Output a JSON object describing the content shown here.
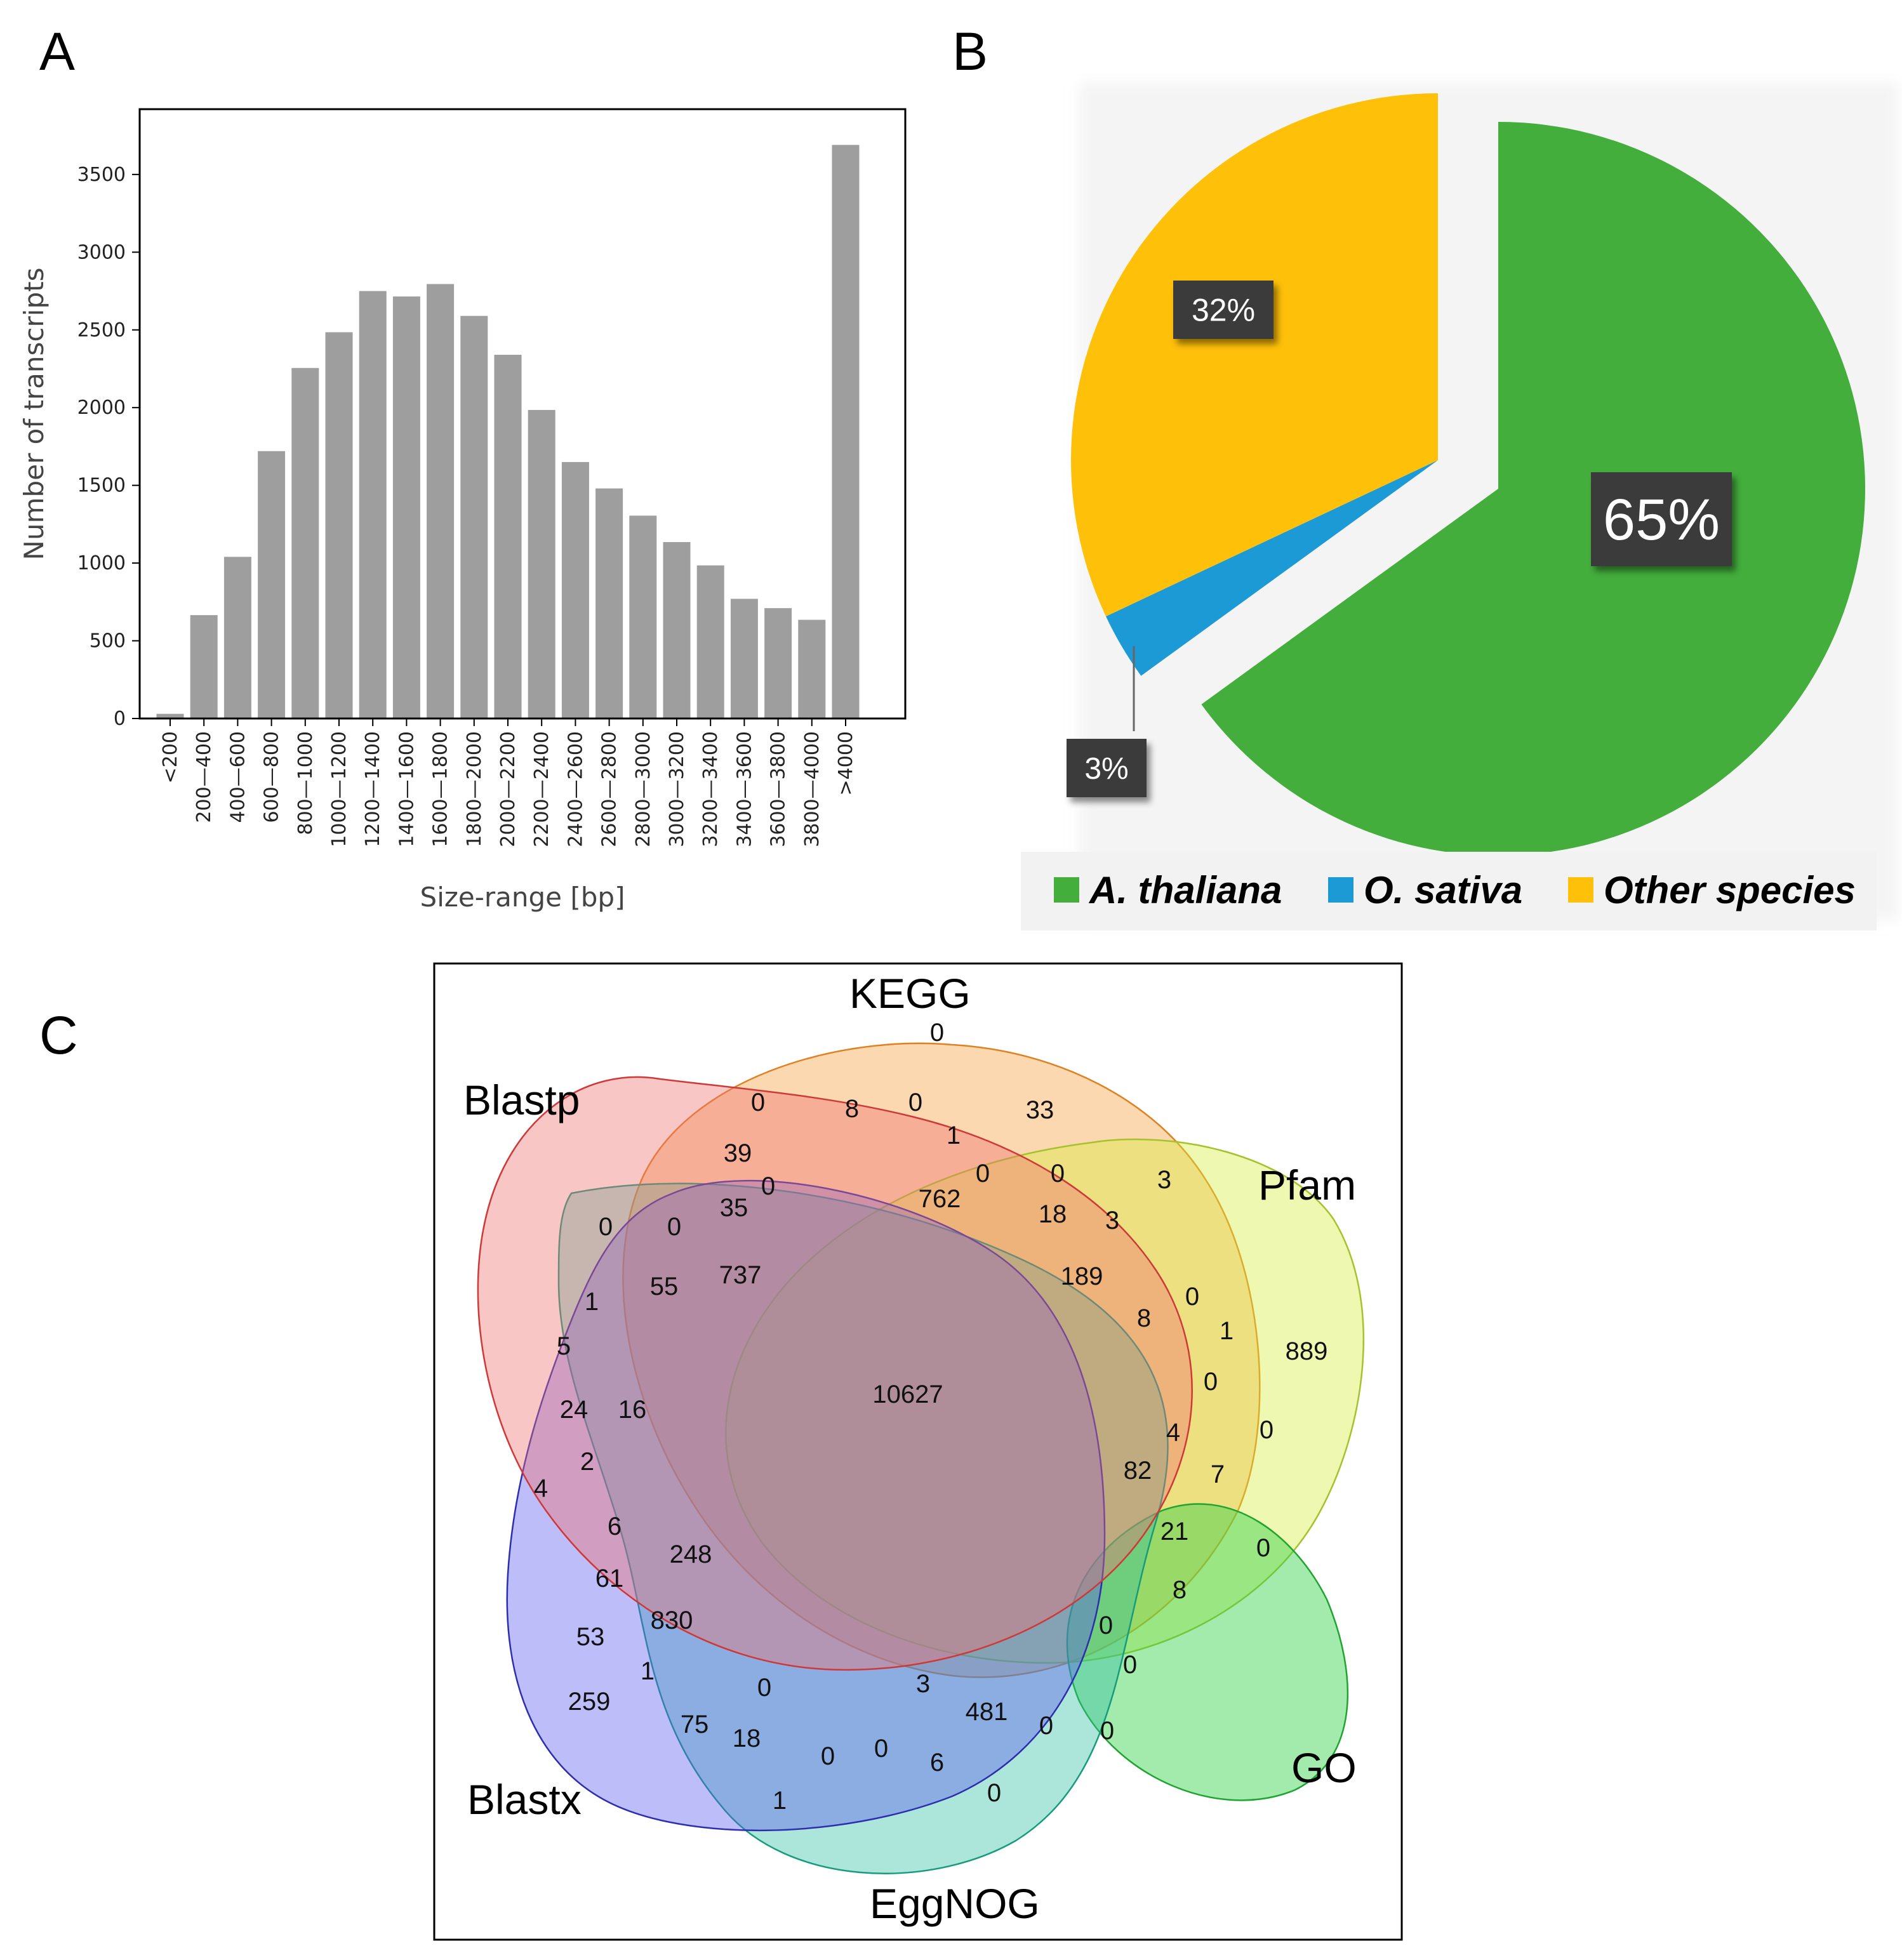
{
  "panels": {
    "a": {
      "letter": "A"
    },
    "b": {
      "letter": "B"
    },
    "c": {
      "letter": "C"
    }
  },
  "chart_data": [
    {
      "id": "A",
      "type": "bar",
      "categories": [
        "<200",
        "200—400",
        "400—600",
        "600—800",
        "800—1000",
        "1000—1200",
        "1200—1400",
        "1400—1600",
        "1600—1800",
        "1800—2000",
        "2000—2200",
        "2200—2400",
        "2400—2600",
        "2600—2800",
        "2800—3000",
        "3000—3200",
        "3200—3400",
        "3400—3600",
        "3600—3800",
        "3800—4000",
        ">4000"
      ],
      "values": [
        30,
        665,
        1040,
        1720,
        2255,
        2485,
        2750,
        2715,
        2795,
        2590,
        2340,
        1985,
        1650,
        1480,
        1305,
        1135,
        985,
        770,
        710,
        635,
        3690
      ],
      "title": "",
      "xlabel": "Size-range [bp]",
      "ylabel": "Number of transcripts",
      "yticks": [
        0,
        500,
        1000,
        1500,
        2000,
        2500,
        3000,
        3500
      ],
      "ylim": [
        0,
        3920
      ],
      "bar_color": "#9e9e9e"
    },
    {
      "id": "B",
      "type": "pie",
      "labels": [
        "A. thaliana",
        "O. sativa",
        "Other species"
      ],
      "values": [
        65,
        3,
        32
      ],
      "value_labels": [
        "65%",
        "3%",
        "32%"
      ],
      "colors": [
        "#43ae3c",
        "#1b9ad6",
        "#fec009"
      ],
      "legend_position": "bottom"
    },
    {
      "id": "C",
      "type": "venn",
      "sets": [
        "KEGG",
        "Pfam",
        "GO",
        "EggNOG",
        "Blastx",
        "Blastp"
      ],
      "set_colors": [
        "#f7a342",
        "#d4ee3b",
        "#34d04a",
        "#2fbf9f",
        "#5b5bf0",
        "#f07070"
      ],
      "regions": [
        "0",
        "0",
        "8",
        "0",
        "33",
        "0",
        "1",
        "39",
        "0",
        "0",
        "3",
        "762",
        "18",
        "3",
        "0",
        "0",
        "35",
        "55",
        "737",
        "189",
        "8",
        "0",
        "1",
        "889",
        "1",
        "5",
        "10627",
        "0",
        "24",
        "16",
        "4",
        "0",
        "4",
        "82",
        "7",
        "2",
        "21",
        "0",
        "6",
        "248",
        "8",
        "61",
        "53",
        "830",
        "0",
        "0",
        "1",
        "0",
        "3",
        "481",
        "0",
        "259",
        "75",
        "18",
        "0",
        "0",
        "0",
        "6",
        "0",
        "1"
      ]
    }
  ]
}
